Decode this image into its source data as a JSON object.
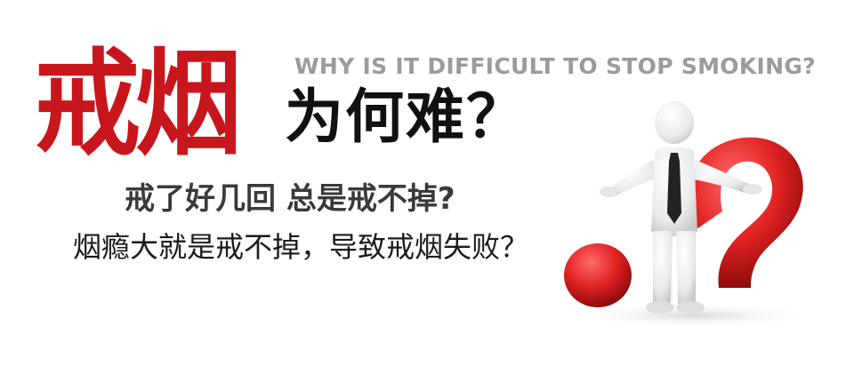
{
  "banner": {
    "title_main": "戒烟",
    "title_sub": "为何难？",
    "title_en": "WHY IS IT DIFFICULT TO STOP SMOKING?",
    "line1": "戒了好几回 总是戒不掉?",
    "line2": "烟瘾大就是戒不掉，导致戒烟失败？"
  },
  "colors": {
    "accent_red": "#c8161d",
    "text_dark": "#111111",
    "text_gray": "#9b9b9b"
  },
  "icons": [
    "question-mark-icon",
    "person-figure-icon"
  ]
}
